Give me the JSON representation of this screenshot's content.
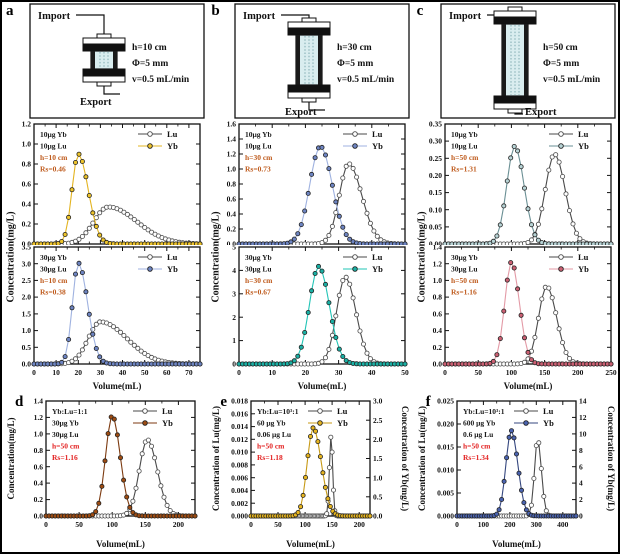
{
  "figure": {
    "panels_top": [
      {
        "letter": "a",
        "ylabel": "Concentration(mg/L)",
        "diagram": {
          "import_label": "Import",
          "export_label": "Export",
          "h_cm": 10,
          "specs": [
            "h=10 cm",
            "Φ=5 mm",
            "v=0.5 mL/min"
          ]
        }
      },
      {
        "letter": "b",
        "ylabel": "Concentration(mg/L)",
        "diagram": {
          "import_label": "Import",
          "export_label": "Export",
          "h_cm": 30,
          "specs": [
            "h=30 cm",
            "Φ=5 mm",
            "v=0.5 mL/min"
          ]
        }
      },
      {
        "letter": "c",
        "ylabel": "Concentration(mg/L)",
        "diagram": {
          "import_label": "Import",
          "export_label": "Export",
          "h_cm": 50,
          "specs": [
            "h=50 cm",
            "Φ=5 mm",
            "v=0.5 mL/min"
          ]
        }
      }
    ],
    "panels_bottom": [
      {
        "letter": "d"
      },
      {
        "letter": "e"
      },
      {
        "letter": "f"
      }
    ]
  },
  "chart_data": [
    {
      "id": "a-top-10ug",
      "type": "line",
      "xlim": [
        0,
        75
      ],
      "xticks": [
        0,
        10,
        20,
        30,
        40,
        50,
        60,
        70
      ],
      "ylim": [
        0,
        1.2
      ],
      "yticks": [
        "0.0",
        "0.2",
        "0.4",
        "0.6",
        "0.8",
        "1.0",
        "1.2"
      ],
      "annotations": [
        {
          "text": "10μg Yb",
          "color": "#1a1a1a"
        },
        {
          "text": "10μg Lu",
          "color": "#1a1a1a"
        },
        {
          "text": "h=10 cm",
          "color": "#bf5b1d"
        },
        {
          "text": "Rs=0.46",
          "color": "#bf5b1d"
        }
      ],
      "legend": [
        "Lu",
        "Yb"
      ],
      "series": [
        {
          "name": "Lu",
          "marker": "open",
          "line_color": "#4a4a4a",
          "marker_fill": "#ffffff",
          "marker_stroke": "#4a4a4a",
          "peak_x": 33.5,
          "peak_y": 0.37,
          "sigma_left": 6.5,
          "sigma_right": 13
        },
        {
          "name": "Yb",
          "marker": "filled",
          "line_color": "#e3b421",
          "marker_fill": "#edc32a",
          "marker_stroke": "#3a3a3a",
          "peak_x": 20,
          "peak_y": 0.9,
          "sigma_left": 2.8,
          "sigma_right": 4.5
        }
      ]
    },
    {
      "id": "a-bottom-30ug",
      "type": "line",
      "xlim": [
        0,
        75
      ],
      "xticks": [
        0,
        10,
        20,
        30,
        40,
        50,
        60,
        70
      ],
      "xlabel": "Volume(mL)",
      "ylim": [
        0,
        3.5
      ],
      "yticks": [
        "0.0",
        "0.5",
        "1.0",
        "1.5",
        "2.0",
        "2.5",
        "3.0",
        "3.5"
      ],
      "annotations": [
        {
          "text": "30μg Yb",
          "color": "#1a1a1a"
        },
        {
          "text": "30μg Lu",
          "color": "#1a1a1a"
        },
        {
          "text": "h=10 cm",
          "color": "#bf5b1d"
        },
        {
          "text": "Rs=0.38",
          "color": "#bf5b1d"
        }
      ],
      "legend": [
        "Lu",
        "Yb"
      ],
      "series": [
        {
          "name": "Lu",
          "marker": "open",
          "line_color": "#4a4a4a",
          "marker_fill": "#ffffff",
          "marker_stroke": "#4a4a4a",
          "peak_x": 30,
          "peak_y": 1.26,
          "sigma_left": 5.5,
          "sigma_right": 12
        },
        {
          "name": "Yb",
          "marker": "filled",
          "line_color": "#9fb2e0",
          "marker_fill": "#6d84c2",
          "marker_stroke": "#333333",
          "peak_x": 20,
          "peak_y": 3.02,
          "sigma_left": 2.6,
          "sigma_right": 4.2
        }
      ]
    },
    {
      "id": "b-top-10ug",
      "type": "line",
      "xlim": [
        0,
        50
      ],
      "xticks": [
        0,
        10,
        20,
        30,
        40,
        50
      ],
      "ylim": [
        0,
        1.6
      ],
      "yticks": [
        "0.0",
        "0.2",
        "0.4",
        "0.6",
        "0.8",
        "1.0",
        "1.2",
        "1.4",
        "1.6"
      ],
      "annotations": [
        {
          "text": "10μg Yb",
          "color": "#1a1a1a"
        },
        {
          "text": "10μg Lu",
          "color": "#1a1a1a"
        },
        {
          "text": "h=30 cm",
          "color": "#bf5b1d"
        },
        {
          "text": "Rs=0.73",
          "color": "#bf5b1d"
        }
      ],
      "legend": [
        "Lu",
        "Yb"
      ],
      "series": [
        {
          "name": "Lu",
          "marker": "open",
          "line_color": "#4a4a4a",
          "marker_fill": "#ffffff",
          "marker_stroke": "#4a4a4a",
          "peak_x": 33,
          "peak_y": 1.07,
          "sigma_left": 2.8,
          "sigma_right": 4
        },
        {
          "name": "Yb",
          "marker": "filled",
          "line_color": "#9fb2e0",
          "marker_fill": "#6d84c2",
          "marker_stroke": "#333333",
          "peak_x": 24.5,
          "peak_y": 1.3,
          "sigma_left": 3.2,
          "sigma_right": 3.6
        }
      ]
    },
    {
      "id": "b-bottom-30ug",
      "type": "line",
      "xlim": [
        0,
        50
      ],
      "xticks": [
        0,
        10,
        20,
        30,
        40,
        50
      ],
      "xlabel": "Volume(mL)",
      "ylim": [
        0,
        5
      ],
      "yticks": [
        "0",
        "1",
        "2",
        "3",
        "4",
        "5"
      ],
      "annotations": [
        {
          "text": "30μg Yb",
          "color": "#1a1a1a"
        },
        {
          "text": "30μg Lu",
          "color": "#1a1a1a"
        },
        {
          "text": "h=30 cm",
          "color": "#bf5b1d"
        },
        {
          "text": "Rs=0.67",
          "color": "#bf5b1d"
        }
      ],
      "legend": [
        "Lu",
        "Yb"
      ],
      "series": [
        {
          "name": "Lu",
          "marker": "open",
          "line_color": "#4a4a4a",
          "marker_fill": "#ffffff",
          "marker_stroke": "#4a4a4a",
          "peak_x": 32,
          "peak_y": 3.72,
          "sigma_left": 2.6,
          "sigma_right": 3.2
        },
        {
          "name": "Yb",
          "marker": "filled",
          "line_color": "#22c4b6",
          "marker_fill": "#19b0a4",
          "marker_stroke": "#222222",
          "peak_x": 24,
          "peak_y": 4.17,
          "sigma_left": 2.8,
          "sigma_right": 3.2
        }
      ]
    },
    {
      "id": "c-top-10ug",
      "type": "line",
      "xlim": [
        0,
        250
      ],
      "xticks": [
        0,
        50,
        100,
        150,
        200,
        250
      ],
      "ylim": [
        0,
        0.35
      ],
      "yticks": [
        "0.00",
        "0.05",
        "0.10",
        "0.15",
        "0.20",
        "0.25",
        "0.30",
        "0.35"
      ],
      "annotations": [
        {
          "text": "10μg Yb",
          "color": "#1a1a1a"
        },
        {
          "text": "10μg Lu",
          "color": "#1a1a1a"
        },
        {
          "text": "h=50 cm",
          "color": "#bf5b1d"
        },
        {
          "text": "Rs=1.31",
          "color": "#bf5b1d"
        }
      ],
      "legend": [
        "Lu",
        "Yb"
      ],
      "series": [
        {
          "name": "Lu",
          "marker": "open",
          "line_color": "#4a4a4a",
          "marker_fill": "#ffffff",
          "marker_stroke": "#4a4a4a",
          "peak_x": 165,
          "peak_y": 0.262,
          "sigma_left": 14,
          "sigma_right": 16
        },
        {
          "name": "Yb",
          "marker": "filled",
          "line_color": "#6a8f94",
          "marker_fill": "#b8d4d6",
          "marker_stroke": "#444444",
          "peak_x": 105,
          "peak_y": 0.285,
          "sigma_left": 12,
          "sigma_right": 14
        }
      ]
    },
    {
      "id": "c-bottom-30ug",
      "type": "line",
      "xlim": [
        0,
        250
      ],
      "xticks": [
        0,
        50,
        100,
        150,
        200,
        250
      ],
      "xlabel": "Volume(mL)",
      "ylim": [
        0,
        1.4
      ],
      "yticks": [
        "0.0",
        "0.2",
        "0.4",
        "0.6",
        "0.8",
        "1.0",
        "1.2",
        "1.4"
      ],
      "annotations": [
        {
          "text": "30μg Yb",
          "color": "#1a1a1a"
        },
        {
          "text": "30μg Lu",
          "color": "#1a1a1a"
        },
        {
          "text": "h=50 cm",
          "color": "#bf5b1d"
        },
        {
          "text": "Rs=1.16",
          "color": "#bf5b1d"
        }
      ],
      "legend": [
        "Lu",
        "Yb"
      ],
      "series": [
        {
          "name": "Lu",
          "marker": "open",
          "line_color": "#4a4a4a",
          "marker_fill": "#ffffff",
          "marker_stroke": "#4a4a4a",
          "peak_x": 153,
          "peak_y": 0.93,
          "sigma_left": 12,
          "sigma_right": 15
        },
        {
          "name": "Yb",
          "marker": "filled",
          "line_color": "#e39aa6",
          "marker_fill": "#cb5f72",
          "marker_stroke": "#333333",
          "peak_x": 100,
          "peak_y": 1.22,
          "sigma_left": 10,
          "sigma_right": 12
        }
      ]
    },
    {
      "id": "d",
      "type": "line",
      "xlim": [
        0,
        225
      ],
      "xticks": [
        0,
        50,
        100,
        150,
        200
      ],
      "xlabel": "Volume(mL)",
      "ylim": [
        0,
        1.4
      ],
      "yticks": [
        "0.0",
        "0.2",
        "0.4",
        "0.6",
        "0.8",
        "1.0",
        "1.2",
        "1.4"
      ],
      "ylabel": "Concentration(mg/L)",
      "annotations": [
        {
          "text": "Yb:Lu=1:1",
          "color": "#1a1a1a"
        },
        {
          "text": "30μg Yb",
          "color": "#1a1a1a"
        },
        {
          "text": "30μg Lu",
          "color": "#1a1a1a"
        },
        {
          "text": "h=50 cm",
          "color": "#e32222"
        },
        {
          "text": "Rs=1.16",
          "color": "#e32222"
        }
      ],
      "legend": [
        "Lu",
        "Yb"
      ],
      "series": [
        {
          "name": "Lu",
          "marker": "open",
          "line_color": "#4a4a4a",
          "marker_fill": "#ffffff",
          "marker_stroke": "#4a4a4a",
          "peak_x": 153,
          "peak_y": 0.93,
          "sigma_left": 12,
          "sigma_right": 15
        },
        {
          "name": "Yb",
          "marker": "filled",
          "line_color": "#7c3a10",
          "marker_fill": "#9e4c12",
          "marker_stroke": "#222222",
          "peak_x": 100,
          "peak_y": 1.22,
          "sigma_left": 10,
          "sigma_right": 12
        }
      ]
    },
    {
      "id": "e",
      "type": "line",
      "xlim": [
        0,
        220
      ],
      "xticks": [
        0,
        50,
        100,
        150,
        200
      ],
      "xlabel": "Volume(mL)",
      "ylim": [
        0,
        0.018
      ],
      "yticks": [
        "0.000",
        "0.002",
        "0.004",
        "0.006",
        "0.008",
        "0.010",
        "0.012",
        "0.014",
        "0.016",
        "0.018"
      ],
      "ylim_right": [
        0,
        3
      ],
      "yticks_right": [
        "0.0",
        "0.5",
        "1.0",
        "1.5",
        "2.0",
        "2.5",
        "3.0"
      ],
      "ylabel": "Concentration of Lu(mg/L)",
      "ylabel_right": "Concentration of Yb(mg/L)",
      "annotations": [
        {
          "text": "Yb:Lu=10³:1",
          "color": "#1a1a1a"
        },
        {
          "text": "60 μg Yb",
          "color": "#1a1a1a"
        },
        {
          "text": "0.06 μg Lu",
          "color": "#1a1a1a"
        },
        {
          "text": "h=50 cm",
          "color": "#e32222"
        },
        {
          "text": "Rs=1.18",
          "color": "#e32222"
        }
      ],
      "legend": [
        "Lu",
        "Yb"
      ],
      "series": [
        {
          "name": "Lu",
          "axis": "left",
          "marker": "open",
          "line_color": "#4a4a4a",
          "marker_fill": "#ffffff",
          "marker_stroke": "#4a4a4a",
          "peak_x": 148,
          "peak_y": 0.0125,
          "sigma_left": 3,
          "sigma_right": 3,
          "step": 2.5
        },
        {
          "name": "Yb",
          "axis": "right",
          "marker": "filled",
          "line_color": "#c79a17",
          "marker_fill": "#e6b41e",
          "marker_stroke": "#333333",
          "peak_x": 115,
          "peak_y": 2.3,
          "sigma_left": 11,
          "sigma_right": 15
        }
      ]
    },
    {
      "id": "f",
      "type": "line",
      "xlim": [
        0,
        450
      ],
      "xticks": [
        0,
        100,
        200,
        300,
        400
      ],
      "xlabel": "Volume(mL)",
      "ylim": [
        0,
        0.025
      ],
      "yticks": [
        "0.000",
        "0.005",
        "0.010",
        "0.015",
        "0.020",
        "0.025"
      ],
      "ylim_right": [
        0,
        14
      ],
      "yticks_right": [
        "0",
        "2",
        "4",
        "6",
        "8",
        "10",
        "12",
        "14"
      ],
      "ylabel": "Concentration of Lu(mg/L)",
      "ylabel_right": "Concentration of Yb(mg/L)",
      "annotations": [
        {
          "text": "Yb:Lu=10³:1",
          "color": "#1a1a1a"
        },
        {
          "text": "600 μg Yb",
          "color": "#1a1a1a"
        },
        {
          "text": "0.6 μg Lu",
          "color": "#1a1a1a"
        },
        {
          "text": "h=50 cm",
          "color": "#e32222"
        },
        {
          "text": "Rs=1.34",
          "color": "#e32222"
        }
      ],
      "legend": [
        "Lu",
        "Yb"
      ],
      "series": [
        {
          "name": "Lu",
          "axis": "left",
          "marker": "open",
          "line_color": "#4a4a4a",
          "marker_fill": "#ffffff",
          "marker_stroke": "#4a4a4a",
          "peak_x": 305,
          "peak_y": 0.0167,
          "sigma_left": 12,
          "sigma_right": 14
        },
        {
          "name": "Yb",
          "axis": "right",
          "marker": "filled",
          "line_color": "#35477f",
          "marker_fill": "#4a63b0",
          "marker_stroke": "#111111",
          "peak_x": 205,
          "peak_y": 10.4,
          "sigma_left": 20,
          "sigma_right": 25
        }
      ]
    }
  ]
}
